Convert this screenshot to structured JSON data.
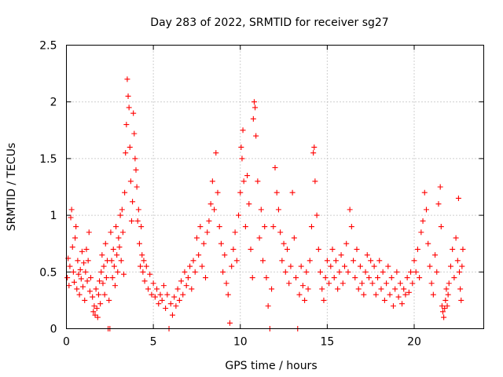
{
  "chart_data": {
    "type": "scatter",
    "title": "Day 283 of 2022, SRMTID for receiver sg27",
    "xlabel": "GPS time / hours",
    "ylabel": "SRMTID / TECUs",
    "xlim": [
      0,
      24
    ],
    "ylim": [
      0,
      2.5
    ],
    "xticks": [
      0,
      5,
      10,
      15,
      20
    ],
    "xtick_labels": [
      "0",
      "5",
      "10",
      "15",
      "20"
    ],
    "yticks": [
      0,
      0.5,
      1,
      1.5,
      2,
      2.5
    ],
    "ytick_labels": [
      "0",
      "0.5",
      "1",
      "1.5",
      "2",
      "2.5"
    ],
    "grid": true,
    "legend": "none",
    "marker": "+",
    "color": "#ff0000",
    "series": [
      {
        "name": "SRMTID",
        "points": [
          [
            0.05,
            0.45
          ],
          [
            0.1,
            0.62
          ],
          [
            0.15,
            0.38
          ],
          [
            0.2,
            0.55
          ],
          [
            0.25,
            0.98
          ],
          [
            0.3,
            1.05
          ],
          [
            0.35,
            0.72
          ],
          [
            0.4,
            0.5
          ],
          [
            0.45,
            0.41
          ],
          [
            0.5,
            0.8
          ],
          [
            0.55,
            0.9
          ],
          [
            0.6,
            0.35
          ],
          [
            0.65,
            0.6
          ],
          [
            0.7,
            0.48
          ],
          [
            0.75,
            0.3
          ],
          [
            0.8,
            0.52
          ],
          [
            0.85,
            0.44
          ],
          [
            0.9,
            0.68
          ],
          [
            0.95,
            0.37
          ],
          [
            1.0,
            0.58
          ],
          [
            1.05,
            0.25
          ],
          [
            1.1,
            0.5
          ],
          [
            1.15,
            0.7
          ],
          [
            1.2,
            0.42
          ],
          [
            1.25,
            0.6
          ],
          [
            1.3,
            0.85
          ],
          [
            1.35,
            0.33
          ],
          [
            1.4,
            0.45
          ],
          [
            1.5,
            0.28
          ],
          [
            1.55,
            0.15
          ],
          [
            1.6,
            0.2
          ],
          [
            1.65,
            0.12
          ],
          [
            1.7,
            0.35
          ],
          [
            1.75,
            0.18
          ],
          [
            1.8,
            0.1
          ],
          [
            1.85,
            0.3
          ],
          [
            1.9,
            0.42
          ],
          [
            1.95,
            0.22
          ],
          [
            2.0,
            0.5
          ],
          [
            2.05,
            0.65
          ],
          [
            2.1,
            0.4
          ],
          [
            2.15,
            0.55
          ],
          [
            2.2,
            0.3
          ],
          [
            2.25,
            0.75
          ],
          [
            2.3,
            0.45
          ],
          [
            2.35,
            0.6
          ],
          [
            2.4,
            0.0
          ],
          [
            2.45,
            0.25
          ],
          [
            2.5,
            0.0
          ],
          [
            2.55,
            0.85
          ],
          [
            2.6,
            0.6
          ],
          [
            2.65,
            0.45
          ],
          [
            2.7,
            0.7
          ],
          [
            2.75,
            0.55
          ],
          [
            2.8,
            0.38
          ],
          [
            2.85,
            0.9
          ],
          [
            2.9,
            0.65
          ],
          [
            2.95,
            0.5
          ],
          [
            3.0,
            0.8
          ],
          [
            3.05,
            0.72
          ],
          [
            3.1,
            1.0
          ],
          [
            3.15,
            0.6
          ],
          [
            3.2,
            1.05
          ],
          [
            3.25,
            0.85
          ],
          [
            3.3,
            0.48
          ],
          [
            3.35,
            1.2
          ],
          [
            3.4,
            1.55
          ],
          [
            3.45,
            1.8
          ],
          [
            3.5,
            2.2
          ],
          [
            3.55,
            2.05
          ],
          [
            3.6,
            1.95
          ],
          [
            3.65,
            1.6
          ],
          [
            3.7,
            1.3
          ],
          [
            3.75,
            0.95
          ],
          [
            3.8,
            1.12
          ],
          [
            3.85,
            1.9
          ],
          [
            3.9,
            1.72
          ],
          [
            3.95,
            1.5
          ],
          [
            4.0,
            1.4
          ],
          [
            4.05,
            1.25
          ],
          [
            4.1,
            0.95
          ],
          [
            4.15,
            1.05
          ],
          [
            4.2,
            0.75
          ],
          [
            4.25,
            0.55
          ],
          [
            4.3,
            0.9
          ],
          [
            4.35,
            0.65
          ],
          [
            4.4,
            0.5
          ],
          [
            4.45,
            0.6
          ],
          [
            4.5,
            0.42
          ],
          [
            4.6,
            0.55
          ],
          [
            4.7,
            0.35
          ],
          [
            4.8,
            0.48
          ],
          [
            4.9,
            0.3
          ],
          [
            5.0,
            0.4
          ],
          [
            5.1,
            0.28
          ],
          [
            5.2,
            0.35
          ],
          [
            5.3,
            0.22
          ],
          [
            5.4,
            0.3
          ],
          [
            5.5,
            0.25
          ],
          [
            5.6,
            0.38
          ],
          [
            5.7,
            0.18
          ],
          [
            5.8,
            0.3
          ],
          [
            5.9,
            0.0
          ],
          [
            6.0,
            0.22
          ],
          [
            6.1,
            0.12
          ],
          [
            6.2,
            0.28
          ],
          [
            6.3,
            0.2
          ],
          [
            6.4,
            0.35
          ],
          [
            6.5,
            0.25
          ],
          [
            6.6,
            0.42
          ],
          [
            6.7,
            0.3
          ],
          [
            6.8,
            0.5
          ],
          [
            6.9,
            0.38
          ],
          [
            7.0,
            0.45
          ],
          [
            7.1,
            0.55
          ],
          [
            7.2,
            0.35
          ],
          [
            7.3,
            0.6
          ],
          [
            7.4,
            0.5
          ],
          [
            7.5,
            0.8
          ],
          [
            7.6,
            0.65
          ],
          [
            7.7,
            0.9
          ],
          [
            7.8,
            0.55
          ],
          [
            7.9,
            0.75
          ],
          [
            8.0,
            0.45
          ],
          [
            8.1,
            0.85
          ],
          [
            8.2,
            0.95
          ],
          [
            8.3,
            1.1
          ],
          [
            8.4,
            1.3
          ],
          [
            8.5,
            1.05
          ],
          [
            8.6,
            1.55
          ],
          [
            8.7,
            1.2
          ],
          [
            8.8,
            0.9
          ],
          [
            8.9,
            0.75
          ],
          [
            9.0,
            0.5
          ],
          [
            9.1,
            0.65
          ],
          [
            9.2,
            0.4
          ],
          [
            9.3,
            0.3
          ],
          [
            9.4,
            0.05
          ],
          [
            9.5,
            0.55
          ],
          [
            9.6,
            0.7
          ],
          [
            9.7,
            0.85
          ],
          [
            9.8,
            0.6
          ],
          [
            9.9,
            1.0
          ],
          [
            10.0,
            1.2
          ],
          [
            10.05,
            1.6
          ],
          [
            10.1,
            1.5
          ],
          [
            10.15,
            1.75
          ],
          [
            10.2,
            1.3
          ],
          [
            10.3,
            0.9
          ],
          [
            10.4,
            1.35
          ],
          [
            10.5,
            1.1
          ],
          [
            10.6,
            0.7
          ],
          [
            10.7,
            0.45
          ],
          [
            10.75,
            1.85
          ],
          [
            10.8,
            2.0
          ],
          [
            10.85,
            1.95
          ],
          [
            10.9,
            1.7
          ],
          [
            11.0,
            1.3
          ],
          [
            11.1,
            0.8
          ],
          [
            11.2,
            1.05
          ],
          [
            11.3,
            0.6
          ],
          [
            11.4,
            0.9
          ],
          [
            11.5,
            0.45
          ],
          [
            11.6,
            0.2
          ],
          [
            11.7,
            0.0
          ],
          [
            11.8,
            0.35
          ],
          [
            11.9,
            0.9
          ],
          [
            12.0,
            1.42
          ],
          [
            12.1,
            1.2
          ],
          [
            12.2,
            1.05
          ],
          [
            12.3,
            0.85
          ],
          [
            12.4,
            0.6
          ],
          [
            12.5,
            0.75
          ],
          [
            12.6,
            0.5
          ],
          [
            12.7,
            0.7
          ],
          [
            12.8,
            0.4
          ],
          [
            12.9,
            0.55
          ],
          [
            13.0,
            1.2
          ],
          [
            13.1,
            0.8
          ],
          [
            13.2,
            0.45
          ],
          [
            13.3,
            0.0
          ],
          [
            13.4,
            0.3
          ],
          [
            13.5,
            0.55
          ],
          [
            13.6,
            0.38
          ],
          [
            13.7,
            0.25
          ],
          [
            13.8,
            0.5
          ],
          [
            13.9,
            0.35
          ],
          [
            14.0,
            0.6
          ],
          [
            14.1,
            0.9
          ],
          [
            14.2,
            1.55
          ],
          [
            14.25,
            1.6
          ],
          [
            14.3,
            1.3
          ],
          [
            14.4,
            1.0
          ],
          [
            14.5,
            0.7
          ],
          [
            14.6,
            0.5
          ],
          [
            14.7,
            0.35
          ],
          [
            14.8,
            0.25
          ],
          [
            14.9,
            0.45
          ],
          [
            15.0,
            0.6
          ],
          [
            15.1,
            0.4
          ],
          [
            15.2,
            0.55
          ],
          [
            15.3,
            0.7
          ],
          [
            15.4,
            0.45
          ],
          [
            15.5,
            0.6
          ],
          [
            15.6,
            0.35
          ],
          [
            15.7,
            0.5
          ],
          [
            15.8,
            0.65
          ],
          [
            15.9,
            0.4
          ],
          [
            16.0,
            0.55
          ],
          [
            16.1,
            0.75
          ],
          [
            16.2,
            0.5
          ],
          [
            16.3,
            1.05
          ],
          [
            16.4,
            0.9
          ],
          [
            16.5,
            0.6
          ],
          [
            16.6,
            0.45
          ],
          [
            16.7,
            0.7
          ],
          [
            16.8,
            0.35
          ],
          [
            16.9,
            0.55
          ],
          [
            17.0,
            0.4
          ],
          [
            17.1,
            0.3
          ],
          [
            17.2,
            0.5
          ],
          [
            17.3,
            0.65
          ],
          [
            17.4,
            0.45
          ],
          [
            17.5,
            0.6
          ],
          [
            17.6,
            0.4
          ],
          [
            17.7,
            0.55
          ],
          [
            17.8,
            0.3
          ],
          [
            17.9,
            0.45
          ],
          [
            18.0,
            0.6
          ],
          [
            18.1,
            0.35
          ],
          [
            18.2,
            0.5
          ],
          [
            18.3,
            0.25
          ],
          [
            18.4,
            0.4
          ],
          [
            18.5,
            0.55
          ],
          [
            18.6,
            0.3
          ],
          [
            18.7,
            0.45
          ],
          [
            18.8,
            0.2
          ],
          [
            18.9,
            0.35
          ],
          [
            19.0,
            0.5
          ],
          [
            19.1,
            0.28
          ],
          [
            19.2,
            0.4
          ],
          [
            19.3,
            0.22
          ],
          [
            19.4,
            0.35
          ],
          [
            19.5,
            0.3
          ],
          [
            19.6,
            0.45
          ],
          [
            19.7,
            0.32
          ],
          [
            19.8,
            0.5
          ],
          [
            19.9,
            0.4
          ],
          [
            20.0,
            0.6
          ],
          [
            20.1,
            0.5
          ],
          [
            20.2,
            0.7
          ],
          [
            20.3,
            0.45
          ],
          [
            20.4,
            0.85
          ],
          [
            20.5,
            0.95
          ],
          [
            20.6,
            1.2
          ],
          [
            20.7,
            1.05
          ],
          [
            20.8,
            0.75
          ],
          [
            20.9,
            0.55
          ],
          [
            21.0,
            0.4
          ],
          [
            21.1,
            0.3
          ],
          [
            21.2,
            0.65
          ],
          [
            21.3,
            0.5
          ],
          [
            21.4,
            1.1
          ],
          [
            21.5,
            1.25
          ],
          [
            21.55,
            0.9
          ],
          [
            21.6,
            0.2
          ],
          [
            21.65,
            0.15
          ],
          [
            21.7,
            0.1
          ],
          [
            21.75,
            0.18
          ],
          [
            21.8,
            0.25
          ],
          [
            21.85,
            0.35
          ],
          [
            21.9,
            0.2
          ],
          [
            21.95,
            0.3
          ],
          [
            22.0,
            0.4
          ],
          [
            22.1,
            0.55
          ],
          [
            22.2,
            0.7
          ],
          [
            22.3,
            0.45
          ],
          [
            22.4,
            0.8
          ],
          [
            22.5,
            0.6
          ],
          [
            22.55,
            1.15
          ],
          [
            22.6,
            0.5
          ],
          [
            22.65,
            0.35
          ],
          [
            22.7,
            0.25
          ],
          [
            22.75,
            0.55
          ],
          [
            22.8,
            0.7
          ]
        ]
      }
    ]
  }
}
